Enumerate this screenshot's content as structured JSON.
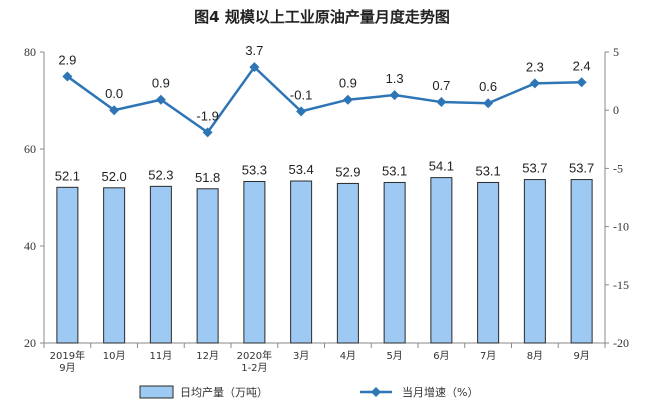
{
  "chart_data": {
    "type": "bar",
    "title": "图4  规模以上工业原油产量月度走势图",
    "categories": [
      "2019年\n9月",
      "10月",
      "11月",
      "12月",
      "2020年\n1-2月",
      "3月",
      "4月",
      "5月",
      "6月",
      "7月",
      "8月",
      "9月"
    ],
    "series": [
      {
        "name": "日均产量（万吨）",
        "type": "bar",
        "axis": "left",
        "values": [
          52.1,
          52.0,
          52.3,
          51.8,
          53.3,
          53.4,
          52.9,
          53.1,
          54.1,
          53.1,
          53.7,
          53.7
        ],
        "labels": [
          "52.1",
          "52.0",
          "52.3",
          "51.8",
          "53.3",
          "53.4",
          "52.9",
          "53.1",
          "54.1",
          "53.1",
          "53.7",
          "53.7"
        ],
        "color": "#9dc9f3",
        "border_color": "#2a2a2a"
      },
      {
        "name": "当月增速（%）",
        "type": "line",
        "axis": "right",
        "values": [
          2.9,
          0.0,
          0.9,
          -1.9,
          3.7,
          -0.1,
          0.9,
          1.3,
          0.7,
          0.6,
          2.3,
          2.4
        ],
        "labels": [
          "2.9",
          "0.0",
          "0.9",
          "-1.9",
          "3.7",
          "-0.1",
          "0.9",
          "1.3",
          "0.7",
          "0.6",
          "2.3",
          "2.4"
        ],
        "color": "#2e75b6"
      }
    ],
    "y_left": {
      "range": [
        20,
        80
      ],
      "ticks": [
        "20",
        "40",
        "60",
        "80"
      ]
    },
    "y_right": {
      "range": [
        -20,
        5
      ],
      "ticks": [
        "5",
        "0",
        "-5",
        "-10",
        "-15",
        "-20"
      ]
    },
    "grid": false,
    "legend_position": "bottom"
  }
}
